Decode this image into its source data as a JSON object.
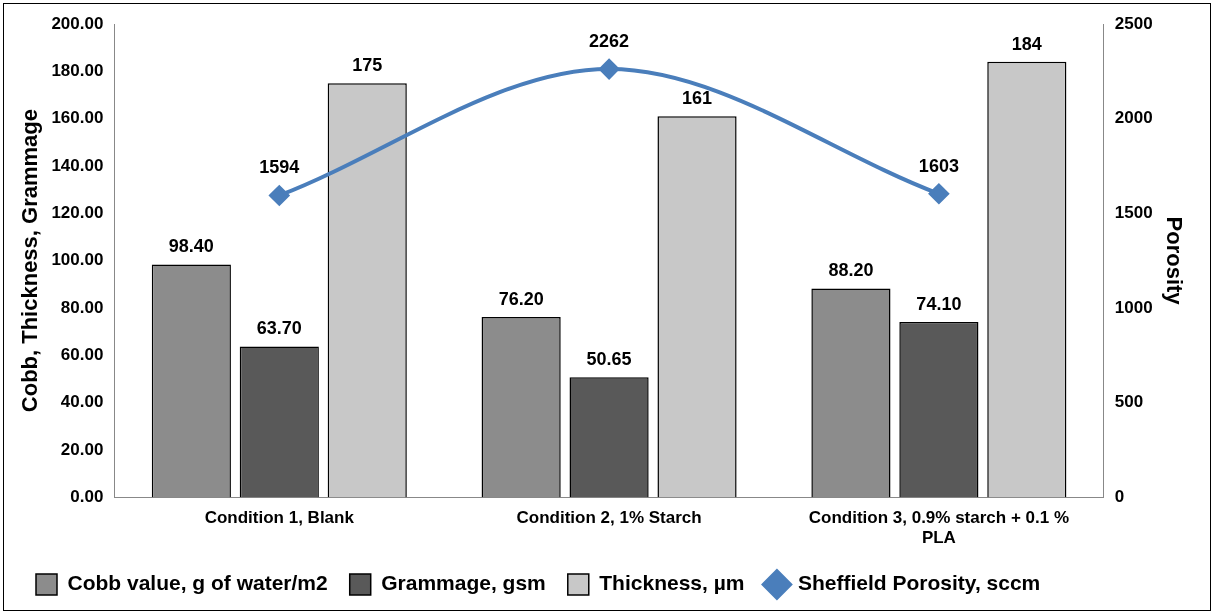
{
  "chart_data": {
    "type": "bar",
    "ylabel": "Cobb, Thickness, Grammage",
    "y2label": "Porosity",
    "categories": [
      "Condition 1, Blank",
      "Condition 2, 1% Starch",
      "Condition 3, 0.9% starch + 0.1 % PLA"
    ],
    "series": [
      {
        "name": "Cobb value, g of water/m2",
        "color": "#8c8c8c",
        "values": [
          98.4,
          76.2,
          88.2
        ],
        "value_labels": [
          "98.40",
          "76.20",
          "88.20"
        ]
      },
      {
        "name": "Grammage, gsm",
        "color": "#595959",
        "values": [
          63.7,
          50.65,
          74.1
        ],
        "value_labels": [
          "63.70",
          "50.65",
          "74.10"
        ]
      },
      {
        "name": "Thickness, µm",
        "color": "#c8c8c8",
        "values": [
          175,
          161,
          184
        ],
        "value_labels": [
          "175",
          "161",
          "184"
        ]
      },
      {
        "name": "Sheffield Porosity, sccm",
        "type": "line",
        "axis": "y2",
        "color": "#4a7ebb",
        "values": [
          1594,
          2262,
          1603
        ],
        "value_labels": [
          "1594",
          "2262",
          "1603"
        ]
      }
    ],
    "ylim": [
      0,
      200
    ],
    "yticks": [
      {
        "value": 0,
        "label": "0.00"
      },
      {
        "value": 20,
        "label": "20.00"
      },
      {
        "value": 40,
        "label": "40.00"
      },
      {
        "value": 60,
        "label": "60.00"
      },
      {
        "value": 80,
        "label": "80.00"
      },
      {
        "value": 100,
        "label": "100.00"
      },
      {
        "value": 120,
        "label": "120.00"
      },
      {
        "value": 140,
        "label": "140.00"
      },
      {
        "value": 160,
        "label": "160.00"
      },
      {
        "value": 180,
        "label": "180.00"
      },
      {
        "value": 200,
        "label": "200.00"
      }
    ],
    "y2lim": [
      0,
      2500
    ],
    "y2ticks": [
      0,
      500,
      1000,
      1500,
      2000,
      2500
    ],
    "legend": "bottom",
    "marker": "diamond",
    "grid": false
  }
}
